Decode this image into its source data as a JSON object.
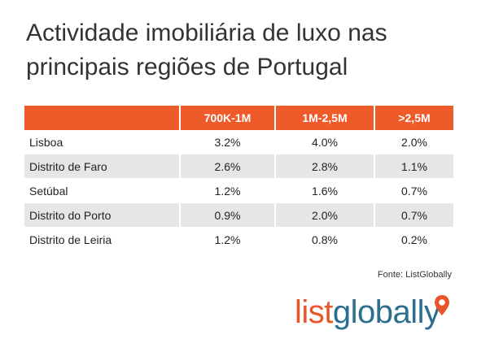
{
  "title": "Actividade imobiliária de luxo nas principais regiões de Portugal",
  "source": "Fonte: ListGlobally",
  "logo": {
    "part1": "list",
    "part2": "globall",
    "part3": "y"
  },
  "colors": {
    "header": "#ef5a2a",
    "row_alt": "#e6e6e6",
    "logo_orange": "#e8552b",
    "logo_blue": "#2a6f8f"
  },
  "chart_data": {
    "type": "table",
    "title": "Actividade imobiliária de luxo nas principais regiões de Portugal",
    "columns": [
      "",
      "700K-1M",
      "1M-2,5M",
      ">2,5M"
    ],
    "rows": [
      {
        "region": "Lisboa",
        "values": [
          "3.2%",
          "4.0%",
          "2.0%"
        ]
      },
      {
        "region": "Distrito de Faro",
        "values": [
          "2.6%",
          "2.8%",
          "1.1%"
        ]
      },
      {
        "region": "Setúbal",
        "values": [
          "1.2%",
          "1.6%",
          "0.7%"
        ]
      },
      {
        "region": "Distrito do Porto",
        "values": [
          "0.9%",
          "2.0%",
          "0.7%"
        ]
      },
      {
        "region": "Distrito de Leiria",
        "values": [
          "1.2%",
          "0.8%",
          "0.2%"
        ]
      }
    ]
  }
}
